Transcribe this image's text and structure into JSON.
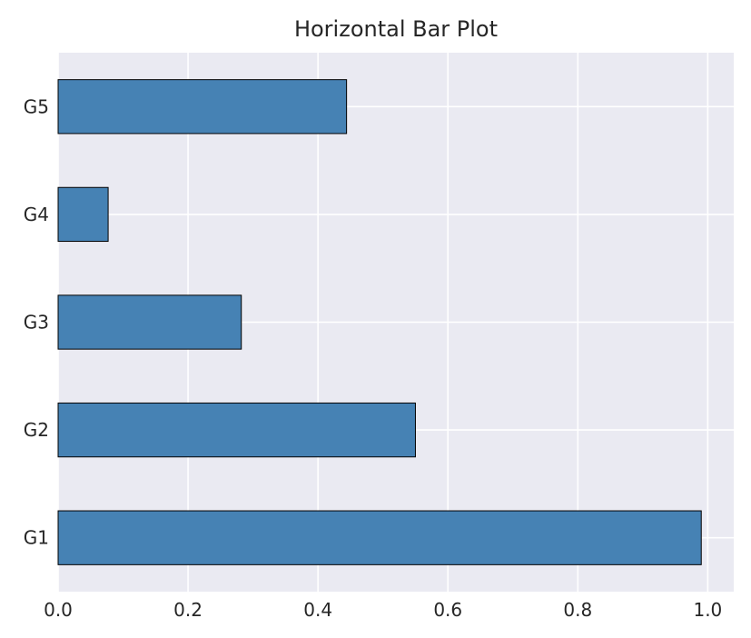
{
  "chart_data": {
    "type": "bar",
    "orientation": "horizontal",
    "title": "Horizontal Bar Plot",
    "xlabel": "",
    "ylabel": "",
    "categories": [
      "G1",
      "G2",
      "G3",
      "G4",
      "G5"
    ],
    "values": [
      0.99,
      0.55,
      0.282,
      0.077,
      0.444
    ],
    "xlim": [
      0.0,
      1.04
    ],
    "xticks": [
      "0.0",
      "0.2",
      "0.4",
      "0.6",
      "0.8",
      "1.0"
    ],
    "grid": true,
    "colors": {
      "bar": "#4682b4",
      "bar_edge": "#000000",
      "plot_background": "#eaeaf2",
      "grid": "#ffffff",
      "text": "#262626"
    }
  }
}
